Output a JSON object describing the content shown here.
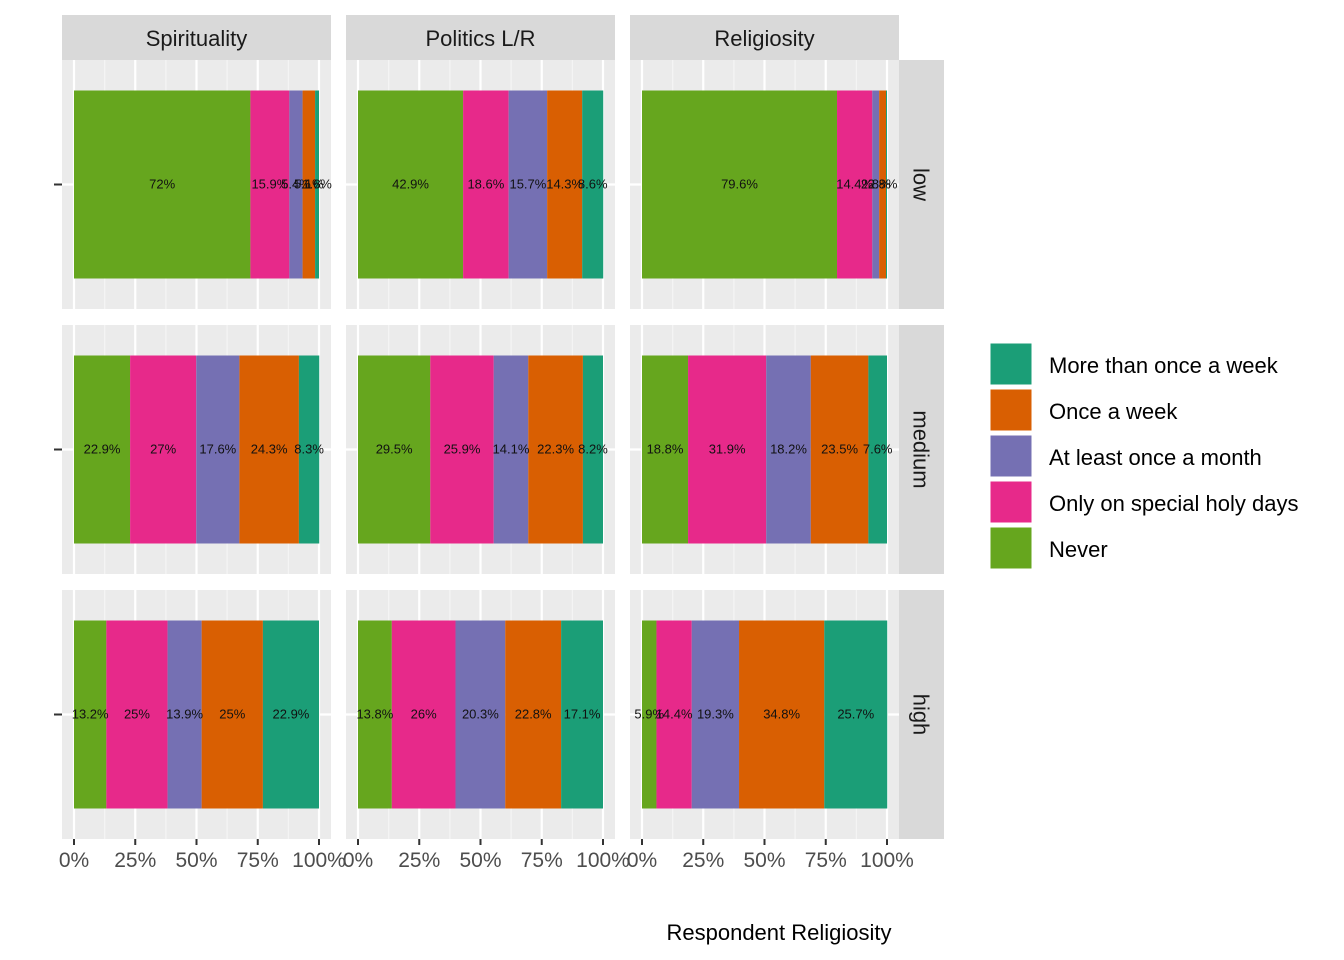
{
  "chart_data": {
    "type": "bar",
    "orientation": "horizontal",
    "stacked": true,
    "xlabel": "Respondent Religiosity",
    "ylabel": "",
    "xlim": [
      0,
      100
    ],
    "x_ticks": [
      "0%",
      "25%",
      "50%",
      "75%",
      "100%"
    ],
    "x_tick_values": [
      0,
      25,
      50,
      75,
      100
    ],
    "grid": true,
    "legend_position": "right",
    "facet_columns": [
      "Spirituality",
      "Politics L/R",
      "Religiosity"
    ],
    "facet_rows": [
      "low",
      "medium",
      "high"
    ],
    "legend": [
      {
        "key": "more_than_once_week",
        "label": "More than once a week",
        "color": "#1B9E77"
      },
      {
        "key": "once_week",
        "label": "Once a week",
        "color": "#D95F02"
      },
      {
        "key": "once_month",
        "label": "At least once a month",
        "color": "#7570B3"
      },
      {
        "key": "holy_days",
        "label": "Only on special holy days",
        "color": "#E7298A"
      },
      {
        "key": "never",
        "label": "Never",
        "color": "#66A61E"
      }
    ],
    "stack_order": [
      "never",
      "holy_days",
      "once_month",
      "once_week",
      "more_than_once_week"
    ],
    "panels": [
      {
        "column": "Spirituality",
        "row": "low",
        "values": [
          72,
          15.9,
          5.4,
          5.1,
          1.6
        ],
        "labels": [
          "72%",
          "15.9%",
          "5.4%",
          "5.1%",
          "1.6%"
        ]
      },
      {
        "column": "Politics L/R",
        "row": "low",
        "values": [
          42.9,
          18.6,
          15.7,
          14.3,
          8.6
        ],
        "labels": [
          "42.9%",
          "18.6%",
          "15.7%",
          "14.3%",
          "8.6%"
        ]
      },
      {
        "column": "Religiosity",
        "row": "low",
        "values": [
          79.6,
          14.4,
          2.8,
          2.8,
          0.4
        ],
        "labels": [
          "79.6%",
          "14.4%",
          "2.8%",
          "2.8%",
          ""
        ]
      },
      {
        "column": "Spirituality",
        "row": "medium",
        "values": [
          22.9,
          27,
          17.6,
          24.3,
          8.3
        ],
        "labels": [
          "22.9%",
          "27%",
          "17.6%",
          "24.3%",
          "8.3%"
        ]
      },
      {
        "column": "Politics L/R",
        "row": "medium",
        "values": [
          29.5,
          25.9,
          14.1,
          22.3,
          8.2
        ],
        "labels": [
          "29.5%",
          "25.9%",
          "14.1%",
          "22.3%",
          "8.2%"
        ]
      },
      {
        "column": "Religiosity",
        "row": "medium",
        "values": [
          18.8,
          31.9,
          18.2,
          23.5,
          7.6
        ],
        "labels": [
          "18.8%",
          "31.9%",
          "18.2%",
          "23.5%",
          "7.6%"
        ]
      },
      {
        "column": "Spirituality",
        "row": "high",
        "values": [
          13.2,
          25,
          13.9,
          25,
          22.9
        ],
        "labels": [
          "13.2%",
          "25%",
          "13.9%",
          "25%",
          "22.9%"
        ]
      },
      {
        "column": "Politics L/R",
        "row": "high",
        "values": [
          13.8,
          26,
          20.3,
          22.8,
          17.1
        ],
        "labels": [
          "13.8%",
          "26%",
          "20.3%",
          "22.8%",
          "17.1%"
        ]
      },
      {
        "column": "Religiosity",
        "row": "high",
        "values": [
          5.9,
          14.4,
          19.3,
          34.8,
          25.7
        ],
        "labels": [
          "5.9%",
          "14.4%",
          "19.3%",
          "34.8%",
          "25.7%"
        ]
      }
    ]
  }
}
